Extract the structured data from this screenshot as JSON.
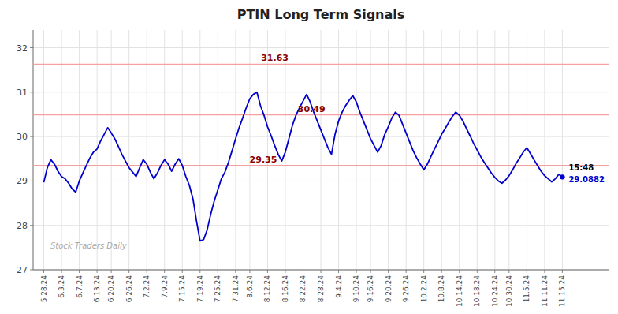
{
  "chart_data": {
    "type": "line",
    "title": "PTIN Long Term Signals",
    "color": "#0000cc",
    "grid": true,
    "ylim": [
      27.0,
      32.4
    ],
    "yticks": [
      27,
      28,
      29,
      30,
      31,
      32
    ],
    "hlines": [
      {
        "y": 31.63,
        "label": "31.63",
        "color": "#f5a0a0"
      },
      {
        "y": 30.49,
        "label": "30.49",
        "color": "#f5a0a0"
      },
      {
        "y": 29.35,
        "label": "29.35",
        "color": "#f5a0a0"
      }
    ],
    "end_labels": [
      "15:48",
      "29.0882"
    ],
    "watermark": "Stock Traders Daily",
    "categories": [
      "5.28.24",
      null,
      null,
      null,
      null,
      "6.3.24",
      null,
      null,
      null,
      null,
      "6.7.24",
      null,
      null,
      null,
      null,
      "6.13.24",
      null,
      null,
      null,
      "6.20.24",
      null,
      null,
      null,
      null,
      "6.26.24",
      null,
      null,
      null,
      null,
      "7.2.24",
      null,
      null,
      null,
      null,
      "7.9.24",
      null,
      null,
      null,
      null,
      "7.15.24",
      null,
      null,
      null,
      null,
      "7.19.24",
      null,
      null,
      null,
      null,
      "7.25.24",
      null,
      null,
      null,
      null,
      "7.31.24",
      null,
      null,
      null,
      "8.6.24",
      null,
      null,
      null,
      null,
      "8.12.24",
      null,
      null,
      null,
      null,
      "8.16.24",
      null,
      null,
      null,
      null,
      "8.22.24",
      null,
      null,
      null,
      null,
      "8.28.24",
      null,
      null,
      null,
      null,
      "9.4.24",
      null,
      null,
      null,
      null,
      "9.10.24",
      null,
      null,
      null,
      "9.16.24",
      null,
      null,
      null,
      null,
      "9.20.24",
      null,
      null,
      null,
      null,
      "9.26.24",
      null,
      null,
      null,
      null,
      "10.2.24",
      null,
      null,
      null,
      null,
      "10.8.24",
      null,
      null,
      null,
      null,
      "10.14.24",
      null,
      null,
      null,
      null,
      "10.18.24",
      null,
      null,
      null,
      null,
      "10.24.24",
      null,
      null,
      null,
      "10.30.24",
      null,
      null,
      null,
      null,
      "11.5.24",
      null,
      null,
      null,
      null,
      "11.11.24",
      null,
      null,
      null,
      null,
      "11.15.24"
    ],
    "values": [
      28.97,
      29.3,
      29.48,
      29.38,
      29.22,
      29.1,
      29.05,
      28.95,
      28.82,
      28.75,
      29.0,
      29.18,
      29.35,
      29.52,
      29.65,
      29.72,
      29.9,
      30.05,
      30.2,
      30.08,
      29.95,
      29.78,
      29.6,
      29.45,
      29.3,
      29.2,
      29.1,
      29.3,
      29.48,
      29.38,
      29.2,
      29.05,
      29.18,
      29.35,
      29.48,
      29.38,
      29.22,
      29.38,
      29.5,
      29.35,
      29.1,
      28.9,
      28.6,
      28.1,
      27.65,
      27.68,
      27.9,
      28.25,
      28.55,
      28.8,
      29.05,
      29.2,
      29.42,
      29.68,
      29.95,
      30.2,
      30.42,
      30.65,
      30.85,
      30.95,
      31.0,
      30.7,
      30.48,
      30.22,
      30.02,
      29.8,
      29.6,
      29.45,
      29.65,
      29.95,
      30.25,
      30.48,
      30.65,
      30.8,
      30.95,
      30.78,
      30.55,
      30.35,
      30.15,
      29.95,
      29.75,
      29.6,
      30.05,
      30.35,
      30.55,
      30.7,
      30.82,
      30.92,
      30.78,
      30.55,
      30.35,
      30.15,
      29.95,
      29.8,
      29.65,
      29.8,
      30.05,
      30.22,
      30.42,
      30.55,
      30.48,
      30.28,
      30.08,
      29.88,
      29.68,
      29.52,
      29.38,
      29.25,
      29.38,
      29.55,
      29.72,
      29.88,
      30.05,
      30.18,
      30.32,
      30.45,
      30.55,
      30.48,
      30.35,
      30.18,
      30.02,
      29.85,
      29.7,
      29.55,
      29.42,
      29.3,
      29.18,
      29.08,
      29.0,
      28.95,
      29.02,
      29.12,
      29.25,
      29.4,
      29.52,
      29.65,
      29.75,
      29.62,
      29.48,
      29.35,
      29.22,
      29.12,
      29.05,
      28.98,
      29.05,
      29.15,
      29.09
    ]
  }
}
